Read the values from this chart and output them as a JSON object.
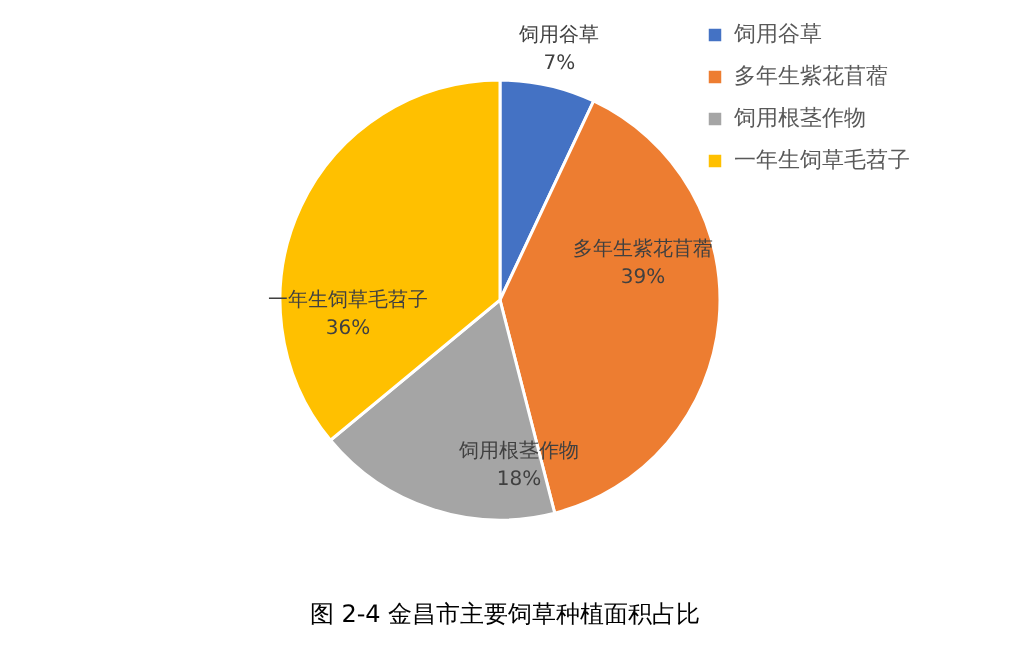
{
  "chart_data": {
    "type": "pie",
    "categories": [
      "饲用谷草",
      "多年生紫花苜蓿",
      "饲用根茎作物",
      "一年生饲草毛苕子"
    ],
    "values": [
      7,
      39,
      18,
      36
    ],
    "colors": [
      "#4472c4",
      "#ed7d31",
      "#a5a5a5",
      "#ffc000"
    ],
    "value_labels": [
      "7%",
      "39%",
      "18%",
      "36%"
    ],
    "legend": "top right",
    "annotations": [
      "图 2-4    金昌市主要饲草种植面积占比"
    ]
  }
}
